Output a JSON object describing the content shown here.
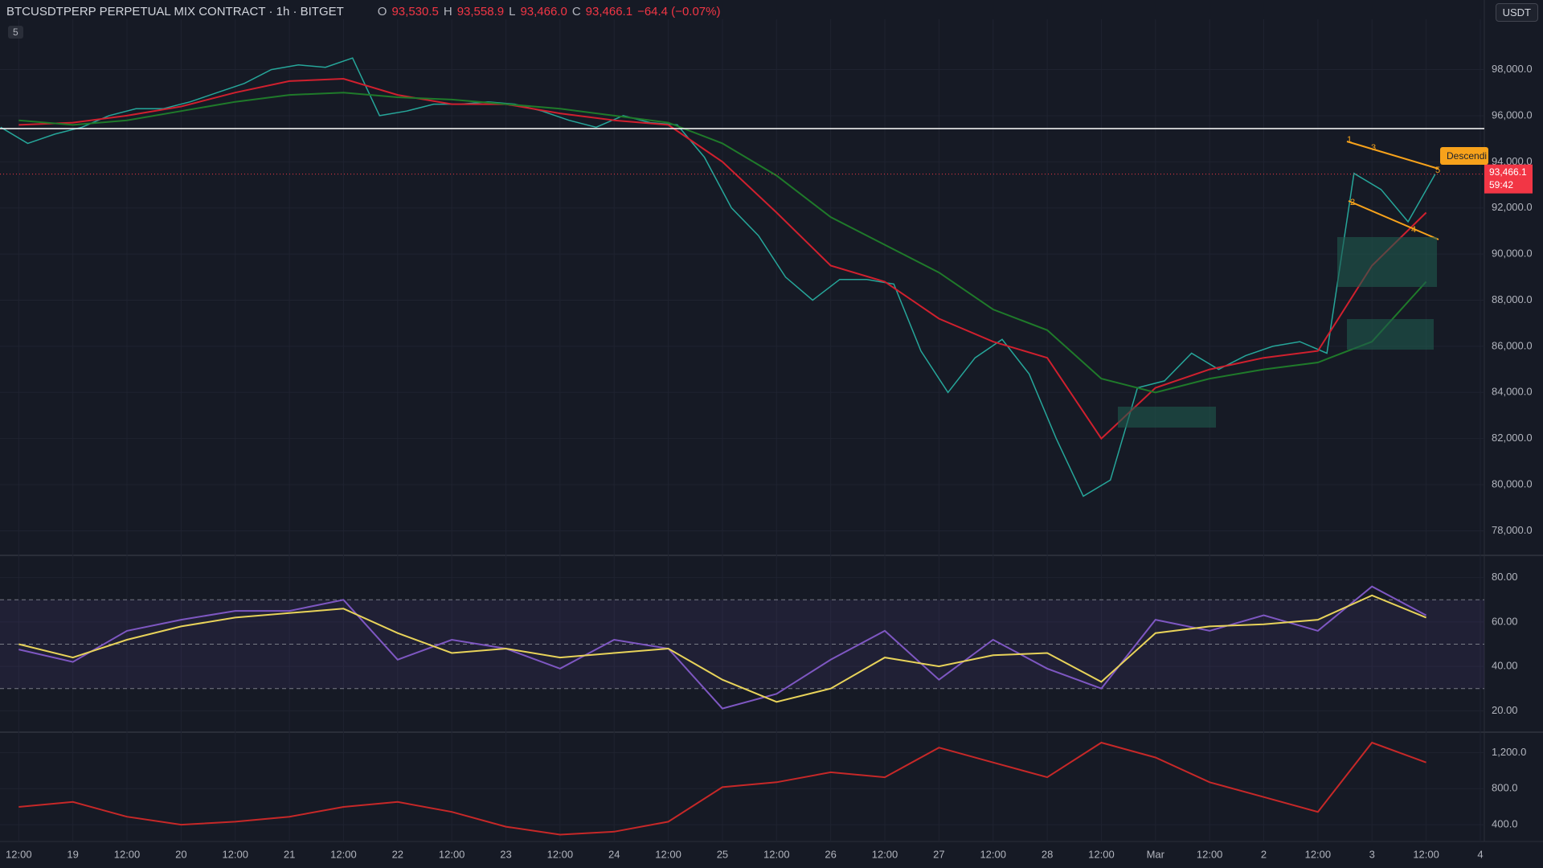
{
  "header": {
    "symbol": "BTCUSDTPERP PERPETUAL MIX CONTRACT · 1h · BITGET",
    "o_label": "O",
    "o": "93,530.5",
    "h_label": "H",
    "h": "93,558.9",
    "l_label": "L",
    "l": "93,466.0",
    "c_label": "C",
    "c": "93,466.1",
    "change": "−64.4 (−0.07%)",
    "currency": "USDT",
    "collapse": "5"
  },
  "chart_data": [
    {
      "type": "line",
      "x": [
        8,
        14,
        20,
        26,
        32,
        38,
        44,
        50,
        56,
        62,
        68,
        74,
        80,
        86,
        92,
        98,
        104,
        110,
        116,
        122,
        128,
        134,
        140,
        146,
        152,
        158,
        164,
        170,
        176,
        182,
        188,
        194,
        200,
        206,
        212,
        218,
        224,
        230,
        236,
        242,
        248,
        254,
        260,
        266,
        272,
        278,
        284,
        290,
        296,
        302,
        308,
        314,
        320,
        326
      ],
      "series": [
        {
          "color": "#26a69a",
          "values": [
            95500,
            94800,
            95200,
            95500,
            96000,
            96300,
            96300,
            96600,
            97000,
            97400,
            98000,
            98200,
            98100,
            98500,
            96000,
            96200,
            96500,
            96500,
            96600,
            96500,
            96200,
            95800,
            95500,
            96000,
            95700,
            95600,
            94200,
            92000,
            90800,
            89000,
            88000,
            88900,
            88900,
            88700,
            85800,
            84000,
            85500,
            86300,
            84800,
            82000,
            79500,
            80200,
            84200,
            84500,
            85700,
            85000,
            85600,
            86000,
            86200,
            85700,
            93500,
            92800,
            91400,
            93466.1
          ]
        }
      ],
      "xlim": [
        7.85,
        336.9
      ],
      "ylim": [
        76970,
        100180
      ],
      "xticks": [
        {
          "value": 12,
          "label": "12:00"
        },
        {
          "value": 24,
          "label": "19"
        },
        {
          "value": 36,
          "label": "12:00"
        },
        {
          "value": 48,
          "label": "20"
        },
        {
          "value": 60,
          "label": "12:00"
        },
        {
          "value": 72,
          "label": "21"
        },
        {
          "value": 84,
          "label": "12:00"
        },
        {
          "value": 96,
          "label": "22"
        },
        {
          "value": 108,
          "label": "12:00"
        },
        {
          "value": 120,
          "label": "23"
        },
        {
          "value": 132,
          "label": "12:00"
        },
        {
          "value": 144,
          "label": "24"
        },
        {
          "value": 156,
          "label": "12:00"
        },
        {
          "value": 168,
          "label": "25"
        },
        {
          "value": 180,
          "label": "12:00"
        },
        {
          "value": 192,
          "label": "26"
        },
        {
          "value": 204,
          "label": "12:00"
        },
        {
          "value": 216,
          "label": "27"
        },
        {
          "value": 228,
          "label": "12:00"
        },
        {
          "value": 240,
          "label": "28"
        },
        {
          "value": 252,
          "label": "12:00"
        },
        {
          "value": 264,
          "label": "Mar"
        },
        {
          "value": 276,
          "label": "12:00"
        },
        {
          "value": 288,
          "label": "2"
        },
        {
          "value": 300,
          "label": "12:00"
        },
        {
          "value": 312,
          "label": "3"
        },
        {
          "value": 324,
          "label": "12:00"
        },
        {
          "value": 336,
          "label": "4"
        }
      ],
      "yticks": [
        {
          "value": 78000,
          "label": "78,000.0"
        },
        {
          "value": 80000,
          "label": "80,000.0"
        },
        {
          "value": 82000,
          "label": "82,000.0"
        },
        {
          "value": 84000,
          "label": "84,000.0"
        },
        {
          "value": 86000,
          "label": "86,000.0"
        },
        {
          "value": 88000,
          "label": "88,000.0"
        },
        {
          "value": 90000,
          "label": "90,000.0"
        },
        {
          "value": 92000,
          "label": "92,000.0"
        },
        {
          "value": 94000,
          "label": "94,000.0"
        },
        {
          "value": 96000,
          "label": "96,000.0"
        },
        {
          "value": 98000,
          "label": "98,000.0"
        }
      ],
      "grid": true,
      "hline": 95440,
      "last_price": {
        "value": 93466.1,
        "label": "93,466.1"
      },
      "countdown": "59:42",
      "pattern_label": "Descendi",
      "pattern_points": [
        "1",
        "2",
        "3",
        "4",
        "5"
      ]
    },
    {
      "type": "line",
      "x": [
        12,
        24,
        36,
        48,
        60,
        72,
        84,
        96,
        108,
        120,
        132,
        144,
        156,
        168,
        180,
        192,
        204,
        216,
        228,
        240,
        252,
        264,
        276,
        288,
        300,
        312,
        324
      ],
      "series": [
        {
          "color": "#d0202e",
          "values": [
            95600,
            95700,
            96000,
            96400,
            97000,
            97500,
            97600,
            96900,
            96500,
            96500,
            96100,
            95800,
            95600,
            94000,
            91800,
            89500,
            88800,
            87200,
            86200,
            85500,
            82000,
            84200,
            85000,
            85500,
            85800,
            89500,
            91800
          ]
        },
        {
          "color": "#1f7a2a",
          "values": [
            95800,
            95600,
            95800,
            96200,
            96600,
            96900,
            97000,
            96800,
            96700,
            96500,
            96300,
            96000,
            95700,
            94800,
            93400,
            91600,
            90400,
            89200,
            87600,
            86700,
            84600,
            84000,
            84600,
            85000,
            85300,
            86200,
            88800
          ]
        }
      ]
    },
    {
      "type": "line",
      "x": [
        12,
        24,
        36,
        48,
        60,
        72,
        84,
        96,
        108,
        120,
        132,
        144,
        156,
        168,
        180,
        192,
        204,
        216,
        228,
        240,
        252,
        264,
        276,
        288,
        300,
        312,
        324
      ],
      "series": [
        {
          "color": "#7e57c2",
          "values": [
            47.6,
            42,
            56,
            61,
            65,
            65,
            70,
            43,
            52,
            48,
            39,
            52,
            48,
            21,
            27.6,
            43,
            56,
            34,
            52,
            39,
            30,
            61,
            56,
            63,
            56,
            76,
            63
          ]
        },
        {
          "color": "#e8d35a",
          "values": [
            50,
            44,
            52,
            58,
            62,
            64,
            66,
            55,
            46,
            48,
            44,
            46,
            48,
            34,
            24,
            30,
            44,
            40,
            45,
            46,
            33,
            55,
            58,
            59,
            61,
            72,
            62
          ]
        }
      ],
      "ylim": [
        10.7,
        89.3
      ],
      "yticks": [
        {
          "value": 20,
          "label": "20.00"
        },
        {
          "value": 40,
          "label": "40.00"
        },
        {
          "value": 60,
          "label": "60.00"
        },
        {
          "value": 80,
          "label": "80.00"
        }
      ],
      "bands": [
        30,
        50,
        70
      ]
    },
    {
      "type": "line",
      "x": [
        12,
        24,
        36,
        48,
        60,
        72,
        84,
        96,
        108,
        120,
        132,
        144,
        156,
        168,
        180,
        192,
        204,
        216,
        228,
        240,
        252,
        264,
        276,
        288,
        300,
        312,
        324
      ],
      "series": [
        {
          "color": "#c62828",
          "values": [
            597,
            652,
            488,
            400,
            433,
            488,
            597,
            652,
            542,
            378,
            290,
            323,
            433,
            816,
            871,
            981,
            926,
            1255,
            1090,
            926,
            1310,
            1145,
            871,
            707,
            542,
            1310,
            1090
          ]
        }
      ],
      "ylim": [
        214,
        1408
      ],
      "yticks": [
        {
          "value": 400,
          "label": "400.0"
        },
        {
          "value": 800,
          "label": "800.0"
        },
        {
          "value": 1200,
          "label": "1,200.0"
        }
      ]
    }
  ]
}
